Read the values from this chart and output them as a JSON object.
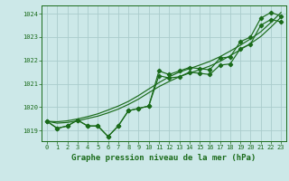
{
  "xlabel": "Graphe pression niveau de la mer (hPa)",
  "ylabel": "",
  "bg_color": "#cce8e8",
  "grid_color": "#aacccc",
  "line_color": "#1a6b1a",
  "xlim": [
    -0.5,
    23.5
  ],
  "ylim": [
    1018.55,
    1024.35
  ],
  "yticks": [
    1019,
    1020,
    1021,
    1022,
    1023,
    1024
  ],
  "xticks": [
    0,
    1,
    2,
    3,
    4,
    5,
    6,
    7,
    8,
    9,
    10,
    11,
    12,
    13,
    14,
    15,
    16,
    17,
    18,
    19,
    20,
    21,
    22,
    23
  ],
  "series1": [
    1019.4,
    1019.1,
    1019.2,
    1019.45,
    1019.2,
    1019.2,
    1018.75,
    1019.2,
    1019.85,
    1019.95,
    1020.05,
    1021.55,
    1021.4,
    1021.55,
    1021.7,
    1021.65,
    1021.6,
    1022.1,
    1022.15,
    1022.8,
    1023.0,
    1023.8,
    1024.05,
    1023.9
  ],
  "series2": [
    1019.4,
    1019.1,
    1019.2,
    1019.45,
    1019.2,
    1019.2,
    1018.75,
    1019.2,
    1019.85,
    1019.95,
    1020.05,
    1021.35,
    1021.25,
    1021.3,
    1021.5,
    1021.45,
    1021.4,
    1021.8,
    1021.85,
    1022.5,
    1022.7,
    1023.5,
    1023.75,
    1023.65
  ],
  "smooth1": [
    1019.4,
    1019.38,
    1019.42,
    1019.5,
    1019.6,
    1019.72,
    1019.88,
    1020.05,
    1020.25,
    1020.5,
    1020.78,
    1021.05,
    1021.3,
    1021.5,
    1021.65,
    1021.8,
    1021.96,
    1022.16,
    1022.4,
    1022.65,
    1022.92,
    1023.22,
    1023.62,
    1024.05
  ],
  "smooth2": [
    1019.4,
    1019.32,
    1019.35,
    1019.42,
    1019.52,
    1019.62,
    1019.76,
    1019.92,
    1020.12,
    1020.35,
    1020.62,
    1020.88,
    1021.1,
    1021.3,
    1021.46,
    1021.6,
    1021.76,
    1021.96,
    1022.2,
    1022.46,
    1022.72,
    1023.02,
    1023.42,
    1023.85
  ]
}
